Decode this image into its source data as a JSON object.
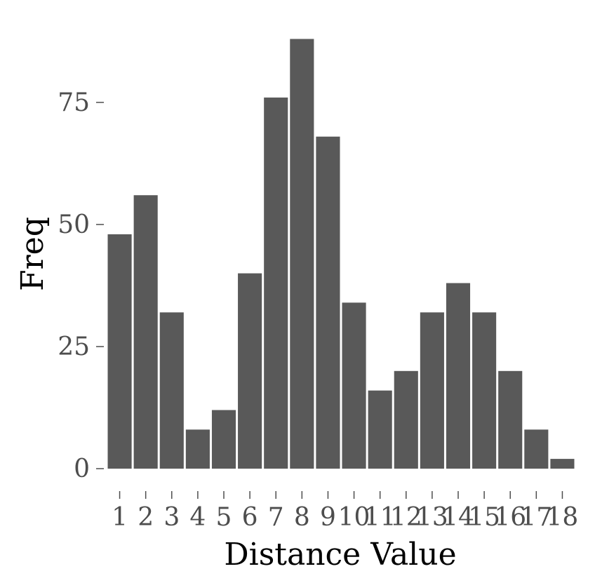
{
  "chart_data": {
    "type": "bar",
    "categories": [
      "1",
      "2",
      "3",
      "4",
      "5",
      "6",
      "7",
      "8",
      "9",
      "10",
      "11",
      "12",
      "13",
      "14",
      "15",
      "16",
      "17",
      "18"
    ],
    "values": [
      48,
      56,
      32,
      8,
      12,
      40,
      76,
      88,
      68,
      34,
      16,
      20,
      32,
      38,
      32,
      20,
      8,
      2
    ],
    "xlabel": "Distance Value",
    "ylabel": "Freq",
    "yticks": [
      0,
      25,
      50,
      75
    ],
    "ylim": [
      0,
      90
    ],
    "grid": false,
    "bar_color": "#595959"
  }
}
